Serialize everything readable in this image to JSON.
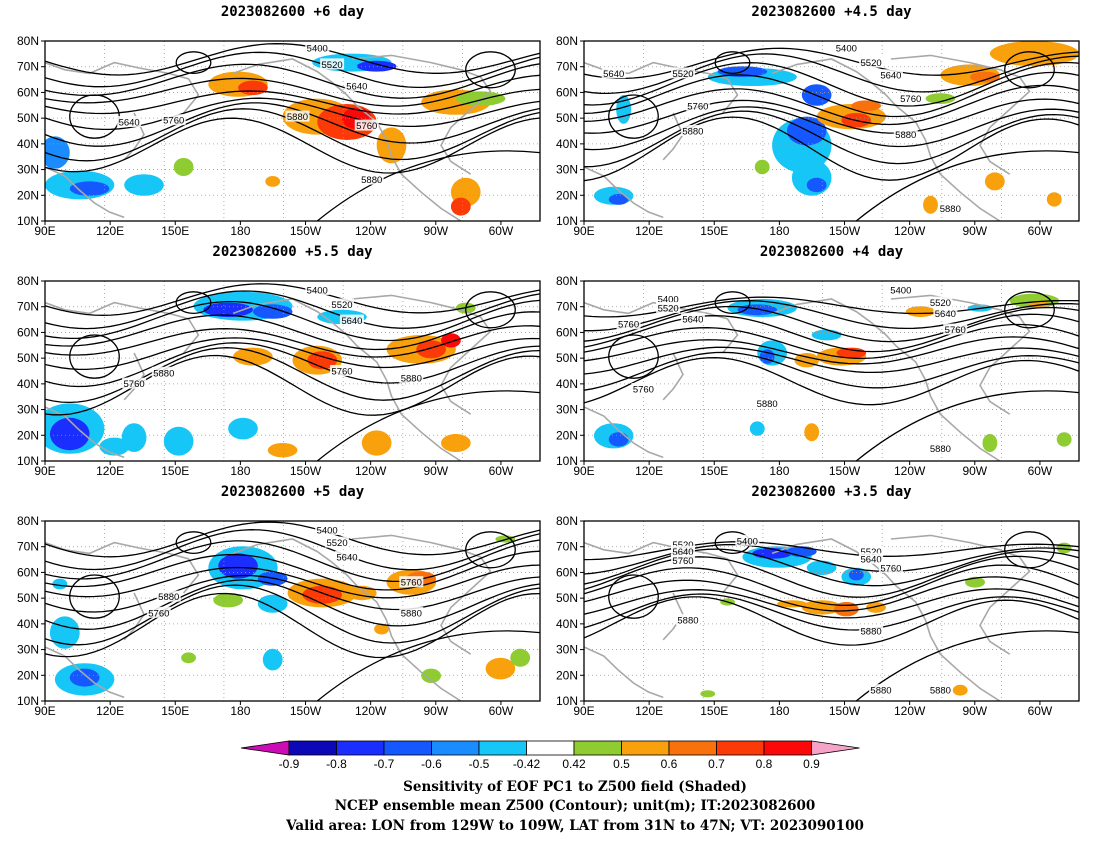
{
  "panels": [
    {
      "title": "2023082600 +6 day",
      "contour_labels": [
        "5400",
        "5520",
        "5640",
        "5640",
        "5760",
        "5880",
        "5760",
        "5880"
      ]
    },
    {
      "title": "2023082600 +4.5 day",
      "contour_labels": [
        "5400",
        "5520",
        "5520",
        "5640",
        "5640",
        "5760",
        "5760",
        "5880",
        "5880",
        "5880"
      ]
    },
    {
      "title": "2023082600 +5.5 day",
      "contour_labels": [
        "5400",
        "5520",
        "5640",
        "5760",
        "5880",
        "5760",
        "5880"
      ]
    },
    {
      "title": "2023082600 +4 day",
      "contour_labels": [
        "5400",
        "5520",
        "5640",
        "5760",
        "5400",
        "5520",
        "5640",
        "5760",
        "5760",
        "5880",
        "5880"
      ]
    },
    {
      "title": "2023082600 +5 day",
      "contour_labels": [
        "5400",
        "5520",
        "5640",
        "5760",
        "5880",
        "5760",
        "5880"
      ]
    },
    {
      "title": "2023082600 +3.5 day",
      "contour_labels": [
        "5520",
        "5640",
        "5760",
        "5400",
        "5520",
        "5640",
        "5760",
        "5880",
        "5880",
        "5880",
        "5880"
      ]
    }
  ],
  "axes": {
    "lat_ticks": [
      "80N",
      "70N",
      "60N",
      "50N",
      "40N",
      "30N",
      "20N",
      "10N"
    ],
    "lon_ticks": [
      "90E",
      "120E",
      "150E",
      "180",
      "150W",
      "120W",
      "90W",
      "60W"
    ]
  },
  "colorbar": {
    "labels": [
      "-0.9",
      "-0.8",
      "-0.7",
      "-0.6",
      "-0.5",
      "-0.42",
      "0.42",
      "0.5",
      "0.6",
      "0.7",
      "0.8",
      "0.9"
    ],
    "colors": [
      "#0c08b8",
      "#1a2eff",
      "#1558ff",
      "#1a8cff",
      "#16c6f6",
      "#ffffff",
      "#8ecc32",
      "#f9a10d",
      "#f9710c",
      "#fc3a08",
      "#fb0808"
    ],
    "low_extend_color": "#cc0cb4",
    "high_extend_color": "#f7a3c9"
  },
  "caption": {
    "line1": "Sensitivity of EOF PC1 to Z500 field (Shaded)",
    "line2": "NCEP ensemble mean Z500 (Contour); unit(m); IT:2023082600",
    "line3": "Valid area: LON from 129W to 109W, LAT from 31N to 47N; VT: 2023090100"
  },
  "colors": {
    "contour": "#000000",
    "coastline": "#a8a8a8",
    "grid": "#9a9a9a"
  }
}
